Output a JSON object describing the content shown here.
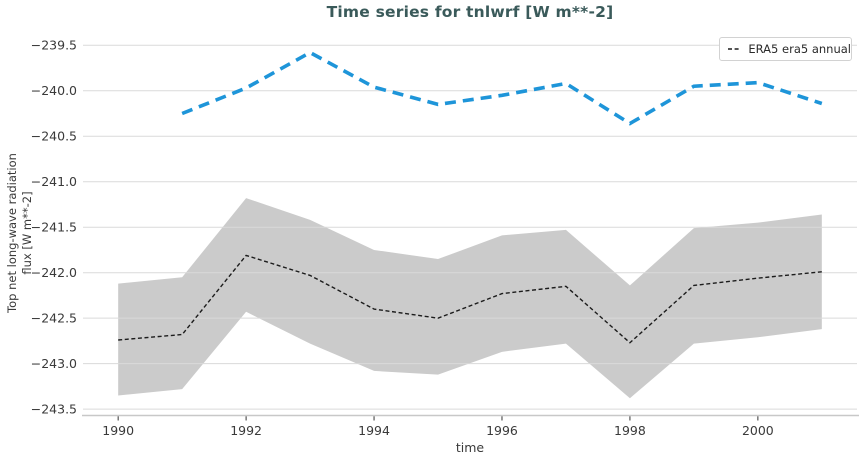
{
  "title": "Time series for tnlwrf [W m**-2]",
  "colors": {
    "title": "#3a5a5a",
    "band": "#cbcbcb",
    "grid": "#dadada",
    "spine": "#c8c8c8",
    "tick_mark": "#555555",
    "tick_text": "#3a3a3a",
    "era5_line": "#1c1c1c",
    "blue_line": "#1e95d9"
  },
  "legend": {
    "entries": [
      {
        "label": "ERA5 era5 annual",
        "style": "dashed",
        "color": "#1c1c1c"
      }
    ]
  },
  "chart_data": {
    "type": "line",
    "title": "Time series for tnlwrf [W m**-2]",
    "xlabel": "time",
    "ylabel": "Top net long-wave radiation\nflux [W m**-2]",
    "xlim": [
      1989.45,
      2001.55
    ],
    "ylim": [
      -243.57,
      -239.31
    ],
    "xticks": [
      1990,
      1992,
      1994,
      1996,
      1998,
      2000
    ],
    "yticks": [
      -239.5,
      -240.0,
      -240.5,
      -241.0,
      -241.5,
      -242.0,
      -242.5,
      -243.0,
      -243.5
    ],
    "grid": true,
    "legend_position": "upper right",
    "series": [
      {
        "name": "ERA5 era5 annual",
        "style": "dashed",
        "color": "#1c1c1c",
        "width": 1.4,
        "dash": "4 2.6",
        "x": [
          1990,
          1991,
          1992,
          1993,
          1994,
          1995,
          1996,
          1997,
          1998,
          1999,
          2000,
          2001
        ],
        "values": [
          -242.74,
          -242.68,
          -241.81,
          -242.03,
          -242.4,
          -242.5,
          -242.23,
          -242.15,
          -242.77,
          -242.14,
          -242.06,
          -241.99
        ]
      },
      {
        "name": "",
        "style": "dashed",
        "color": "#1e95d9",
        "width": 3.6,
        "dash": "11 7",
        "x": [
          1991,
          1992,
          1993,
          1994,
          1995,
          1996,
          1997,
          1998,
          1999,
          2000,
          2001
        ],
        "values": [
          -240.25,
          -239.97,
          -239.58,
          -239.96,
          -240.15,
          -240.05,
          -239.92,
          -240.36,
          -239.95,
          -239.91,
          -240.14
        ]
      }
    ],
    "band": {
      "belongs_to": "ERA5 era5 annual",
      "color": "#cbcbcb",
      "x": [
        1990,
        1991,
        1992,
        1993,
        1994,
        1995,
        1996,
        1997,
        1998,
        1999,
        2000,
        2001
      ],
      "upper": [
        -242.12,
        -242.05,
        -241.18,
        -241.42,
        -241.75,
        -241.85,
        -241.59,
        -241.53,
        -242.14,
        -241.51,
        -241.45,
        -241.36
      ],
      "lower": [
        -243.35,
        -243.28,
        -242.43,
        -242.78,
        -243.08,
        -243.12,
        -242.87,
        -242.78,
        -243.38,
        -242.78,
        -242.71,
        -242.62
      ]
    }
  }
}
